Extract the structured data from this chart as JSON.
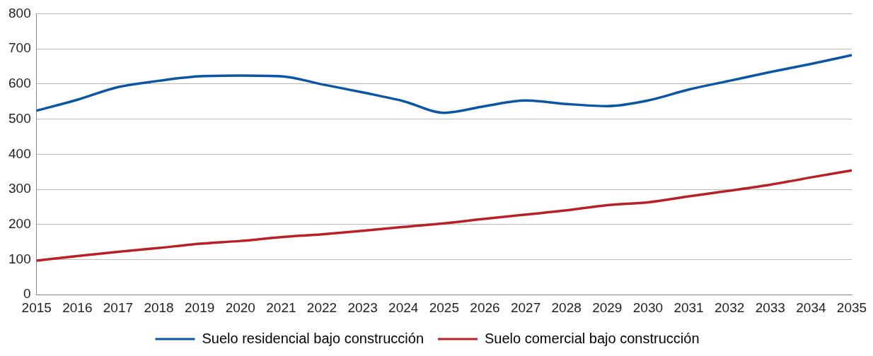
{
  "chart_data": {
    "type": "line",
    "categories": [
      "2015",
      "2016",
      "2017",
      "2018",
      "2019",
      "2020",
      "2021",
      "2022",
      "2023",
      "2024",
      "2025",
      "2026",
      "2027",
      "2028",
      "2029",
      "2030",
      "2031",
      "2032",
      "2033",
      "2034",
      "2035"
    ],
    "series": [
      {
        "name": "Suelo residencial bajo construcción",
        "color": "#0b56a4",
        "values": [
          524,
          555,
          591,
          609,
          622,
          624,
          622,
          599,
          576,
          551,
          518,
          537,
          553,
          543,
          537,
          553,
          584,
          609,
          634,
          657,
          682
        ]
      },
      {
        "name": "Suelo comercial bajo construcción",
        "color": "#b92025",
        "values": [
          97,
          110,
          122,
          133,
          145,
          153,
          164,
          172,
          182,
          193,
          203,
          216,
          228,
          240,
          255,
          263,
          280,
          296,
          313,
          334,
          354
        ]
      }
    ],
    "ylim": [
      0,
      800
    ],
    "yticks": [
      0,
      100,
      200,
      300,
      400,
      500,
      600,
      700,
      800
    ],
    "grid": "y",
    "legend": "bottom",
    "marker": "none",
    "line_style": "solid"
  }
}
